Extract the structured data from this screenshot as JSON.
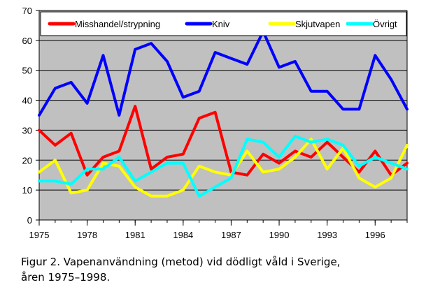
{
  "chart_data": {
    "type": "line",
    "x": [
      1975,
      1976,
      1977,
      1978,
      1979,
      1980,
      1981,
      1982,
      1983,
      1984,
      1985,
      1986,
      1987,
      1988,
      1989,
      1990,
      1991,
      1992,
      1993,
      1994,
      1995,
      1996,
      1997,
      1998
    ],
    "x_tick_labels": [
      "1975",
      "1978",
      "1981",
      "1984",
      "1987",
      "1990",
      "1993",
      "1996"
    ],
    "x_ticks": [
      1975,
      1978,
      1981,
      1984,
      1987,
      1990,
      1993,
      1996
    ],
    "ylim": [
      0,
      70
    ],
    "y_ticks": [
      0,
      10,
      20,
      30,
      40,
      50,
      60,
      70
    ],
    "grid": true,
    "legend_position": "top",
    "plot_background": "#c0c0c0",
    "series": [
      {
        "name": "Misshandel/strypning",
        "color": "#ff0000",
        "values": [
          30,
          25,
          29,
          15,
          21,
          23,
          38,
          17,
          21,
          22,
          34,
          36,
          16,
          15,
          22,
          19,
          23,
          21,
          26,
          21,
          16,
          23,
          15,
          19
        ]
      },
      {
        "name": "Kniv",
        "color": "#0000ff",
        "values": [
          35,
          44,
          46,
          39,
          55,
          35,
          57,
          59,
          53,
          41,
          43,
          56,
          54,
          52,
          63,
          51,
          53,
          43,
          43,
          37,
          37,
          55,
          47,
          37
        ]
      },
      {
        "name": "Skjutvapen",
        "color": "#ffff00",
        "values": [
          16,
          20,
          9,
          10,
          19,
          18,
          11,
          8,
          8,
          10,
          18,
          16,
          15,
          23,
          16,
          17,
          21,
          27,
          17,
          24,
          14,
          11,
          14,
          25
        ]
      },
      {
        "name": "Övrigt",
        "color": "#00ffff",
        "values": [
          13,
          13,
          12,
          17,
          17,
          21,
          13,
          16,
          19,
          19,
          8,
          11,
          14,
          27,
          26,
          21,
          28,
          26,
          27,
          25,
          18,
          21,
          19,
          17
        ]
      }
    ]
  },
  "caption": {
    "line1": "Figur 2. Vapenanvändning (metod) vid dödligt våld i Sverige,",
    "line2": "åren 1975–1998."
  }
}
